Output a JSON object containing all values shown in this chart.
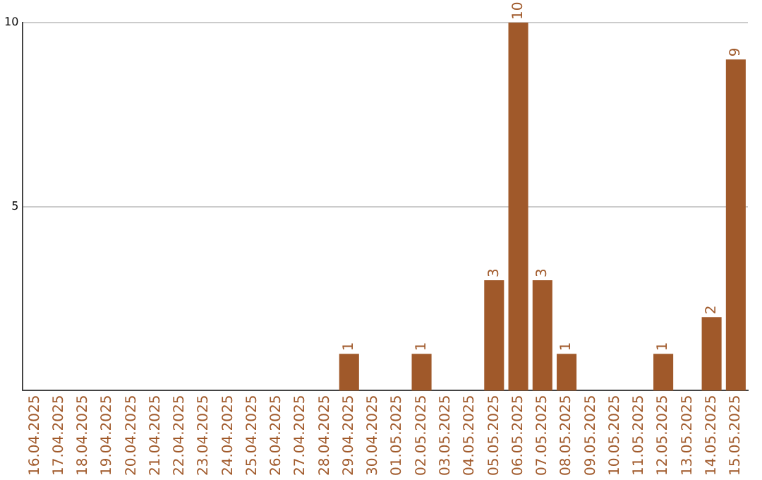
{
  "chart_data": {
    "type": "bar",
    "categories": [
      "16.04.2025",
      "17.04.2025",
      "18.04.2025",
      "19.04.2025",
      "20.04.2025",
      "21.04.2025",
      "22.04.2025",
      "23.04.2025",
      "24.04.2025",
      "25.04.2025",
      "26.04.2025",
      "27.04.2025",
      "28.04.2025",
      "29.04.2025",
      "30.04.2025",
      "01.05.2025",
      "02.05.2025",
      "03.05.2025",
      "04.05.2025",
      "05.05.2025",
      "06.05.2025",
      "07.05.2025",
      "08.05.2025",
      "09.05.2025",
      "10.05.2025",
      "11.05.2025",
      "12.05.2025",
      "13.05.2025",
      "14.05.2025",
      "15.05.2025"
    ],
    "values": [
      0,
      0,
      0,
      0,
      0,
      0,
      0,
      0,
      0,
      0,
      0,
      0,
      0,
      1,
      0,
      0,
      1,
      0,
      0,
      3,
      10,
      3,
      1,
      0,
      0,
      0,
      1,
      0,
      2,
      9
    ],
    "value_labels": [
      null,
      null,
      null,
      null,
      null,
      null,
      null,
      null,
      null,
      null,
      null,
      null,
      null,
      "1",
      null,
      null,
      "1",
      null,
      null,
      "3",
      "10",
      "3",
      "1",
      null,
      null,
      null,
      "1",
      null,
      "2",
      "9"
    ],
    "color": "#a0592a",
    "ylim": [
      0,
      10
    ],
    "yticks": [
      5,
      10
    ],
    "grid": "y",
    "legend": false
  }
}
